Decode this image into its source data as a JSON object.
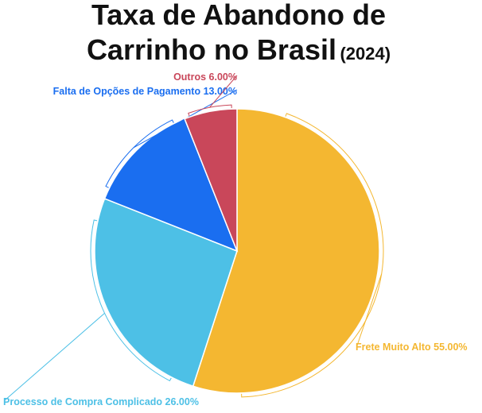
{
  "chart_data": {
    "type": "pie",
    "title": "Taxa de Abandono de Carrinho no Brasil",
    "subtitle": "(2024)",
    "categories": [
      "Frete Muito Alto",
      "Processo de Compra Complicado",
      "Falta de Opções de Pagamento",
      "Outros"
    ],
    "values": [
      55,
      26,
      13,
      6
    ],
    "value_labels": [
      "55.00%",
      "26.00%",
      "13.00%",
      "6.00%"
    ],
    "colors": [
      "#f4b731",
      "#4dc0e6",
      "#1a6ef0",
      "#c9475a"
    ]
  }
}
